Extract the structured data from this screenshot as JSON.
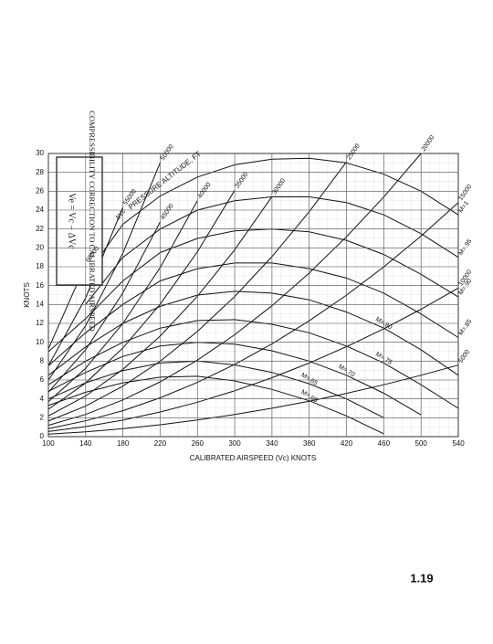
{
  "chart_data": {
    "type": "line",
    "title": "COMPRESSIBILITY CORRECTION TO CALIBRATED AIRSPEED",
    "formula": "Ve = Vc − ΔVc",
    "annotation": "ΔVc",
    "altitude_label": "PRESSURE ALTITUDE, FT",
    "x_label": "CALIBRATED AIRSPEED (Vc) KNOTS",
    "y_label": "KNOTS",
    "page_number": "1.19",
    "x": [
      100,
      140,
      180,
      220,
      260,
      300,
      340,
      380,
      420,
      460,
      500,
      540
    ],
    "xlim": [
      100,
      540
    ],
    "xticks": [
      100,
      140,
      180,
      220,
      260,
      300,
      340,
      380,
      420,
      460,
      500,
      540
    ],
    "ylim": [
      0,
      30
    ],
    "yticks": [
      0,
      2,
      4,
      6,
      8,
      10,
      12,
      14,
      16,
      18,
      20,
      22,
      24,
      26,
      28,
      30
    ],
    "grid": true,
    "series": [
      {
        "name": "M=1",
        "color": "#111111",
        "values": [
          null,
          17,
          22.5,
          25.5,
          27.5,
          28.8,
          29.4,
          29.5,
          29,
          27.8,
          26,
          23.5
        ]
      },
      {
        "name": "M=.95",
        "color": "#111111",
        "values": [
          null,
          14,
          19,
          22,
          24,
          25,
          25.4,
          25.4,
          24.8,
          23.5,
          21.5,
          19
        ]
      },
      {
        "name": "M=.90",
        "color": "#111111",
        "values": [
          9,
          12.5,
          16.5,
          19.5,
          21,
          21.8,
          22,
          21.7,
          20.8,
          19.3,
          17.2,
          14.8
        ]
      },
      {
        "name": "M=.85",
        "color": "#111111",
        "values": [
          7.5,
          11,
          14,
          16.5,
          17.8,
          18.4,
          18.4,
          17.8,
          16.8,
          15.2,
          13,
          10.5
        ]
      },
      {
        "name": "M=.80",
        "color": "#111111",
        "values": [
          6.5,
          9.5,
          12,
          13.8,
          15,
          15.4,
          15.2,
          14.5,
          13.2,
          11.5,
          9.2,
          6.5
        ]
      },
      {
        "name": "M=.75",
        "color": "#111111",
        "values": [
          5.5,
          8,
          10,
          11.5,
          12.3,
          12.4,
          11.9,
          11,
          9.6,
          7.8,
          5.5,
          3
        ]
      },
      {
        "name": "M=.70",
        "color": "#111111",
        "values": [
          4.8,
          6.8,
          8.5,
          9.6,
          10,
          9.8,
          9.1,
          8,
          6.5,
          4.6,
          2.3,
          null
        ]
      },
      {
        "name": "M=.65",
        "color": "#111111",
        "values": [
          4,
          5.7,
          7,
          7.8,
          8,
          7.6,
          6.8,
          5.6,
          4,
          2,
          null,
          null
        ]
      },
      {
        "name": "M=.60",
        "color": "#111111",
        "values": [
          3.3,
          4.7,
          5.7,
          6.3,
          6.4,
          5.9,
          5,
          3.8,
          2.2,
          0.3,
          null,
          null
        ]
      },
      {
        "name": "5000",
        "color": "#111111",
        "values": [
          0.26,
          0.51,
          0.84,
          1.26,
          1.76,
          2.34,
          3.01,
          3.75,
          4.59,
          5.5,
          6.5,
          7.58
        ]
      },
      {
        "name": "10000",
        "color": "#111111",
        "values": [
          0.54,
          1.06,
          1.75,
          2.61,
          3.65,
          4.86,
          6.24,
          7.8,
          9.53,
          11.43,
          13.5,
          15.75
        ]
      },
      {
        "name": "15000",
        "color": "#111111",
        "values": [
          0.85,
          1.67,
          2.75,
          4.11,
          5.75,
          7.65,
          9.83,
          12.27,
          14.99,
          17.99,
          21.25,
          24.79
        ]
      },
      {
        "name": "20000",
        "color": "#111111",
        "values": [
          1.2,
          2.35,
          3.89,
          5.81,
          8.11,
          10.8,
          13.87,
          17.33,
          21.17,
          25.39,
          30,
          null
        ]
      },
      {
        "name": "25000",
        "color": "#111111",
        "values": [
          1.65,
          3.23,
          5.35,
          7.99,
          11.15,
          14.85,
          19.07,
          23.83,
          29.11,
          null,
          null,
          null
        ]
      },
      {
        "name": "30000",
        "color": "#111111",
        "values": [
          2.2,
          4.31,
          7.13,
          10.65,
          14.87,
          19.8,
          25.43,
          null,
          null,
          null,
          null,
          null
        ]
      },
      {
        "name": "35000",
        "color": "#111111",
        "values": [
          2.9,
          5.68,
          9.4,
          14.04,
          19.6,
          26.1,
          null,
          null,
          null,
          null,
          null,
          null
        ]
      },
      {
        "name": "40000",
        "color": "#111111",
        "values": [
          3.7,
          7.25,
          11.99,
          17.91,
          25.01,
          null,
          null,
          null,
          null,
          null,
          null,
          null
        ]
      },
      {
        "name": "45000",
        "color": "#111111",
        "values": [
          4.7,
          9.21,
          15.23,
          22.75,
          null,
          null,
          null,
          null,
          null,
          null,
          null,
          null
        ]
      },
      {
        "name": "50000",
        "color": "#111111",
        "values": [
          6,
          11.76,
          19.44,
          29.04,
          null,
          null,
          null,
          null,
          null,
          null,
          null,
          null
        ]
      },
      {
        "name": "55000",
        "color": "#111111",
        "values": [
          7.5,
          14.7,
          24.3,
          null,
          null,
          null,
          null,
          null,
          null,
          null,
          null,
          null
        ]
      },
      {
        "name": "60000",
        "color": "#111111",
        "values": [
          9.3,
          18.23,
          null,
          null,
          null,
          null,
          null,
          null,
          null,
          null,
          null,
          null
        ]
      }
    ]
  }
}
